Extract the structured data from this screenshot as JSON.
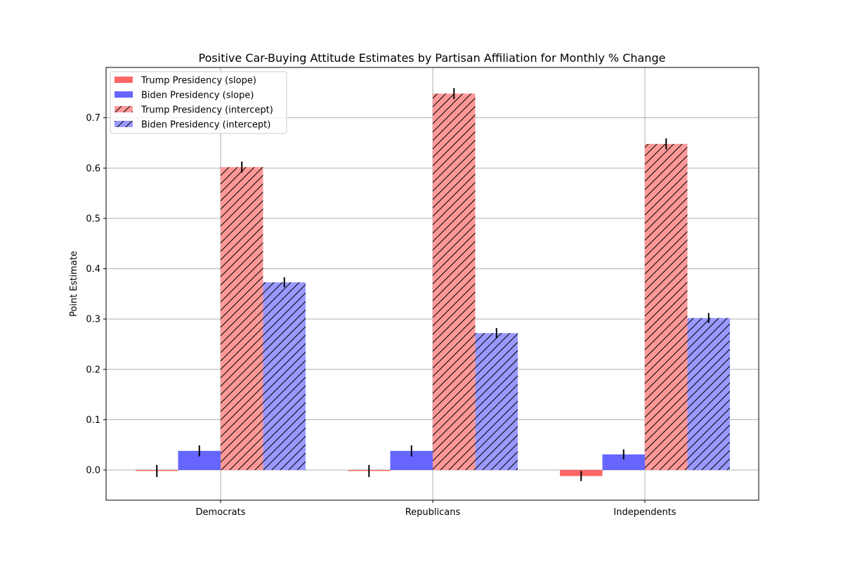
{
  "chart_data": {
    "type": "bar",
    "title": "Positive Car-Buying Attitude Estimates by Partisan Affiliation for Monthly % Change",
    "xlabel": "",
    "ylabel": "Point Estimate",
    "categories": [
      "Democrats",
      "Republicans",
      "Independents"
    ],
    "ylim": [
      -0.06,
      0.8
    ],
    "yticks": [
      0.0,
      0.1,
      0.2,
      0.3,
      0.4,
      0.5,
      0.6,
      0.7
    ],
    "ytick_labels": [
      "0.0",
      "0.1",
      "0.2",
      "0.3",
      "0.4",
      "0.5",
      "0.6",
      "0.7"
    ],
    "grid": true,
    "legend_position": "top-left",
    "series": [
      {
        "name": "Trump Presidency (slope)",
        "values": [
          -0.002,
          -0.002,
          -0.012
        ],
        "errors": [
          0.012,
          0.012,
          0.01
        ],
        "color": "#ff6666",
        "hatch": false
      },
      {
        "name": "Biden Presidency (slope)",
        "values": [
          0.038,
          0.038,
          0.031
        ],
        "errors": [
          0.011,
          0.011,
          0.01
        ],
        "color": "#6666ff",
        "hatch": false
      },
      {
        "name": "Trump Presidency (intercept)",
        "values": [
          0.602,
          0.748,
          0.648
        ],
        "errors": [
          0.011,
          0.011,
          0.011
        ],
        "color": "#ff9999",
        "hatch": true
      },
      {
        "name": "Biden Presidency (intercept)",
        "values": [
          0.373,
          0.272,
          0.302
        ],
        "errors": [
          0.01,
          0.01,
          0.01
        ],
        "color": "#9999ff",
        "hatch": true
      }
    ]
  }
}
